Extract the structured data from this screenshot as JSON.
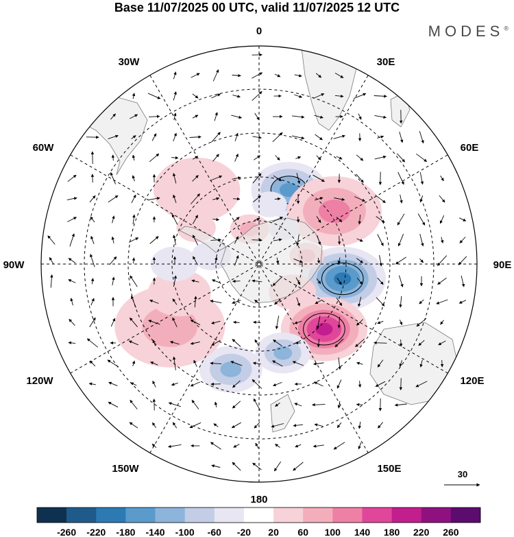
{
  "title": "Base 11/07/2025 00 UTC, valid 11/07/2025 12 UTC",
  "brand": "MODES",
  "brand_mark": "®",
  "longitude_labels": {
    "top": "0",
    "e30": "30E",
    "e60": "60E",
    "e90": "90E",
    "e120": "120E",
    "e150": "150E",
    "bottom": "180",
    "w150": "150W",
    "w120": "120W",
    "w90": "90W",
    "w60": "60W",
    "w30": "30W"
  },
  "reference_vector": {
    "value": "30"
  },
  "colorbar": {
    "labels": [
      "-260",
      "-220",
      "-180",
      "-140",
      "-100",
      "-60",
      "-20",
      "20",
      "60",
      "100",
      "140",
      "180",
      "220",
      "260"
    ],
    "colors": [
      "#0f3150",
      "#1f5b8a",
      "#2d79b3",
      "#5a9bcc",
      "#8db4da",
      "#c3cde6",
      "#e8e6f2",
      "#ffffff",
      "#f7d2d8",
      "#f3aebc",
      "#ee80a6",
      "#e0479a",
      "#c31e8e",
      "#8f1180",
      "#5c0b6e"
    ]
  },
  "map": {
    "blobs": [
      {
        "lon": 22,
        "lat": -57,
        "r": 48,
        "value": -180
      },
      {
        "lon": 55,
        "lat": -52,
        "r": 60,
        "value": 120
      },
      {
        "lon": 100,
        "lat": -55,
        "r": 55,
        "value": -200
      },
      {
        "lon": 135,
        "lat": -52,
        "r": 55,
        "value": 220
      },
      {
        "lon": 165,
        "lat": -52,
        "r": 35,
        "value": -130
      },
      {
        "lon": 195,
        "lat": -45,
        "r": 40,
        "value": -110
      },
      {
        "lon": 235,
        "lat": -45,
        "r": 70,
        "value": 70
      },
      {
        "lon": 250,
        "lat": -55,
        "r": 40,
        "value": 60
      },
      {
        "lon": 280,
        "lat": -70,
        "r": 25,
        "value": -60
      },
      {
        "lon": 320,
        "lat": -50,
        "r": 55,
        "value": 60
      },
      {
        "lon": 345,
        "lat": -75,
        "r": 25,
        "value": 80
      },
      {
        "lon": 10,
        "lat": -65,
        "r": 22,
        "value": -60
      },
      {
        "lon": 130,
        "lat": -72,
        "r": 30,
        "value": 60
      },
      {
        "lon": 80,
        "lat": -70,
        "r": 22,
        "value": 70
      },
      {
        "lon": 270,
        "lat": -55,
        "r": 30,
        "value": -40
      },
      {
        "lon": 300,
        "lat": -60,
        "r": 25,
        "value": 50
      },
      {
        "lon": 35,
        "lat": -72,
        "r": 20,
        "value": -60
      }
    ]
  }
}
